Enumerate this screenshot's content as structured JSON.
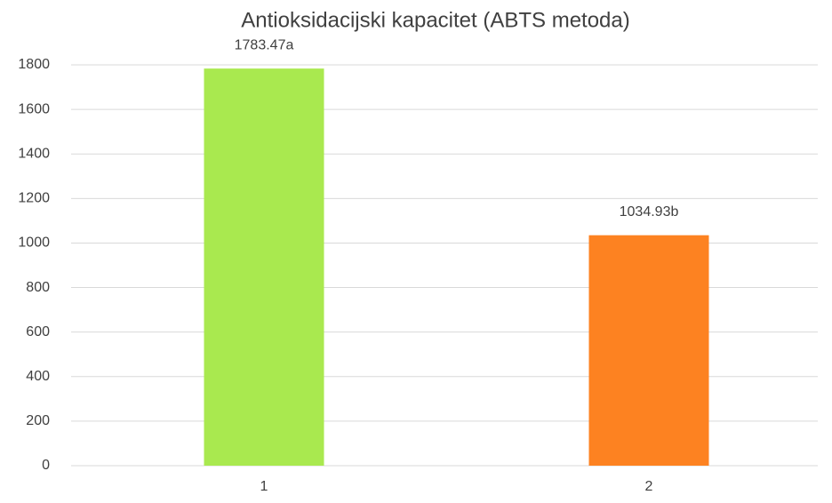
{
  "chart_data": {
    "type": "bar",
    "title": "Antioksidacijski kapacitet (ABTS metoda)",
    "categories": [
      "1",
      "2"
    ],
    "values": [
      1783.47,
      1034.93
    ],
    "value_labels": [
      "1783.47a",
      "1034.93b"
    ],
    "colors": [
      "#a9e94f",
      "#fd8221"
    ],
    "ylim": [
      0,
      1800
    ],
    "yticks": [
      0,
      200,
      400,
      600,
      800,
      1000,
      1200,
      1400,
      1600,
      1800
    ],
    "grid": true
  }
}
